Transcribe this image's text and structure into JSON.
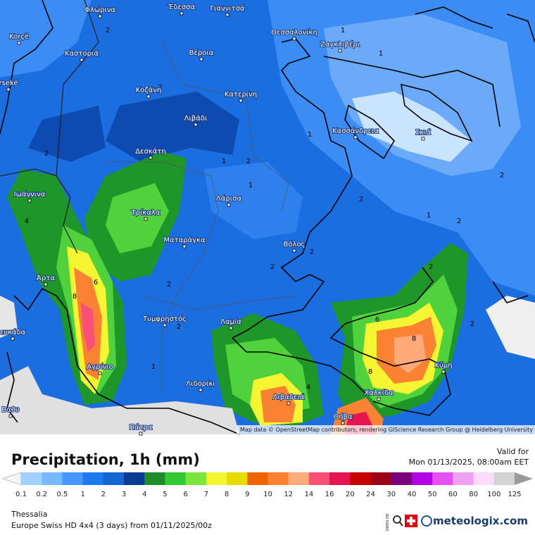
{
  "map": {
    "cities": [
      "Φλώρινα",
      "Έδεσσα",
      "Γιαννιτσά",
      "Korçë",
      "Θεσσαλονίκη",
      "Ζαγκλιβέρι",
      "Καστοριά",
      "Βέροια",
      "rsekë",
      "Κοζάνη",
      "Κατερίνη",
      "Λιβάδι",
      "Κασσάνδρεια",
      "Σκιά",
      "Δεσκάτη",
      "Ιωάννινα",
      "Λάρισα",
      "Τρίκαλα",
      "Ματαράγκα",
      "Βόλος",
      "Άρτα",
      "Τυμφρηστός",
      "Λαμία",
      "ευκάδα",
      "Αγρίνιο",
      "Κύμη",
      "Λιδορίκι",
      "Χαλκίδα",
      "Λιβαδειά",
      "Βαθυ",
      "Θήβα",
      "Πάτρα"
    ],
    "contour_labels": [
      "2",
      "1",
      "1",
      "2",
      "2",
      "2",
      "1",
      "1",
      "2",
      "2",
      "1",
      "2",
      "2",
      "1",
      "4",
      "6",
      "8",
      "2",
      "2",
      "2",
      "6",
      "8",
      "8",
      "4",
      "1",
      "2",
      "2"
    ],
    "attribution": "Map data © OpenStreetMap contributors, rendering GIScience Research Group @ Heidelberg University"
  },
  "header": {
    "title": "Precipitation, 1h (mm)",
    "valid_label": "Valid for",
    "valid_time": "Mon 01/13/2025, 08:00am EET"
  },
  "legend": {
    "labels": [
      "0.1",
      "0.2",
      "0.5",
      "1",
      "2",
      "3",
      "4",
      "5",
      "6",
      "7",
      "8",
      "9",
      "10",
      "12",
      "14",
      "16",
      "20",
      "24",
      "30",
      "40",
      "50",
      "60",
      "80",
      "100",
      "125"
    ],
    "colors": [
      "#a0d2ff",
      "#78b9ff",
      "#4696ff",
      "#1e78f0",
      "#1464d2",
      "#0a3c96",
      "#1e8c28",
      "#32c832",
      "#78e63c",
      "#f5f532",
      "#e6dc00",
      "#f06400",
      "#fa8232",
      "#ffaa78",
      "#fa5078",
      "#e61450",
      "#c80000",
      "#9b0014",
      "#780078",
      "#b400e6",
      "#e650f0",
      "#f0a0f0",
      "#fadcfa",
      "#d2d2d2"
    ],
    "under_color": "#f5f5f5",
    "over_color": "#9a9a9a"
  },
  "footer": {
    "region": "Thessalia",
    "model": "Europe Swiss HD 4x4 (3 days) from 01/11/2025/00z",
    "swiss": "SWISS HD",
    "brand": "meteologix.com"
  }
}
